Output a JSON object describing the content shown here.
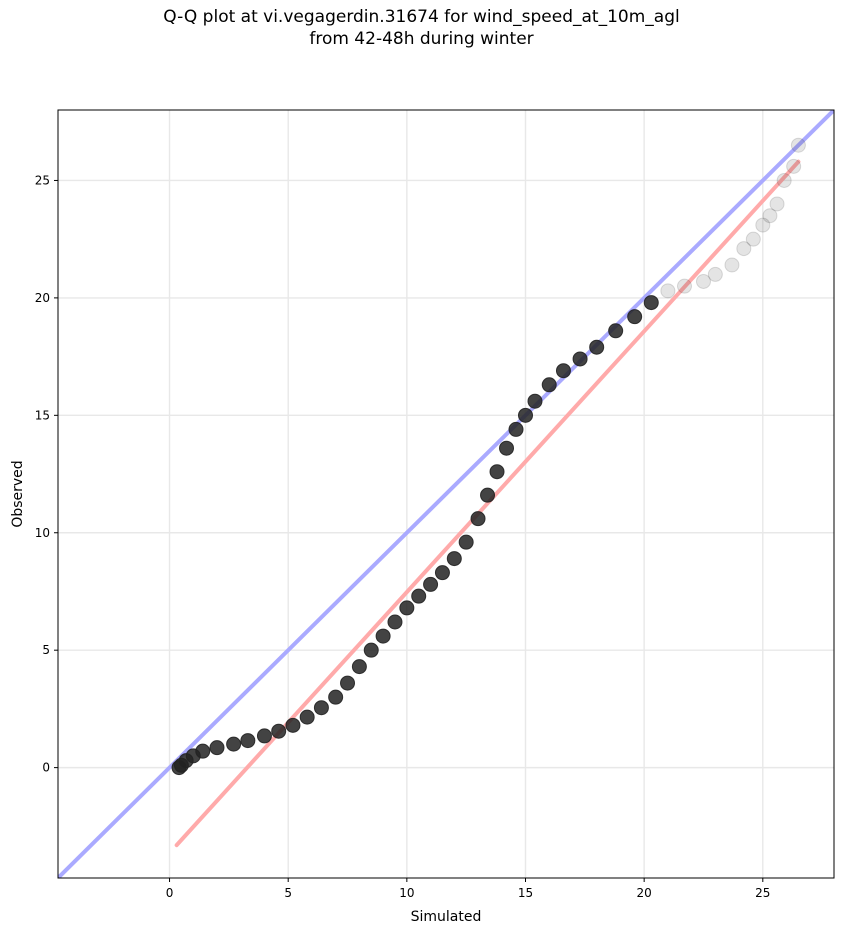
{
  "title_line1": "Q-Q plot at vi.vegagerdin.31674 for wind_speed_at_10m_agl",
  "title_line2": "from 42-48h during winter",
  "chart_data": {
    "type": "scatter",
    "title": "Q-Q plot at vi.vegagerdin.31674 for wind_speed_at_10m_agl from 42-48h during winter",
    "xlabel": "Simulated",
    "ylabel": "Observed",
    "xlim": [
      -4.7,
      28.0
    ],
    "ylim": [
      -4.7,
      28.0
    ],
    "xticks": [
      0,
      5,
      10,
      15,
      20,
      25
    ],
    "yticks": [
      0,
      5,
      10,
      15,
      20,
      25
    ],
    "grid": true,
    "colors": {
      "identity_line": "#aaaaff",
      "fit_line": "#ffaaaa",
      "points": "#222222"
    },
    "series": [
      {
        "kind": "points",
        "points": [
          [
            0.4,
            0.0
          ],
          [
            0.5,
            0.1
          ],
          [
            0.7,
            0.3
          ],
          [
            1.0,
            0.5
          ],
          [
            1.4,
            0.7
          ],
          [
            2.0,
            0.85
          ],
          [
            2.7,
            1.0
          ],
          [
            3.3,
            1.15
          ],
          [
            4.0,
            1.35
          ],
          [
            4.6,
            1.55
          ],
          [
            5.2,
            1.8
          ],
          [
            5.8,
            2.15
          ],
          [
            6.4,
            2.55
          ],
          [
            7.0,
            3.0
          ],
          [
            7.5,
            3.6
          ],
          [
            8.0,
            4.3
          ],
          [
            8.5,
            5.0
          ],
          [
            9.0,
            5.6
          ],
          [
            9.5,
            6.2
          ],
          [
            10.0,
            6.8
          ],
          [
            10.5,
            7.3
          ],
          [
            11.0,
            7.8
          ],
          [
            11.5,
            8.3
          ],
          [
            12.0,
            8.9
          ],
          [
            12.5,
            9.6
          ],
          [
            13.0,
            10.6
          ],
          [
            13.4,
            11.6
          ],
          [
            13.8,
            12.6
          ],
          [
            14.2,
            13.6
          ],
          [
            14.6,
            14.4
          ],
          [
            15.0,
            15.0
          ],
          [
            15.4,
            15.6
          ],
          [
            16.0,
            16.3
          ],
          [
            16.6,
            16.9
          ],
          [
            17.3,
            17.4
          ],
          [
            18.0,
            17.9
          ],
          [
            18.8,
            18.6
          ],
          [
            19.6,
            19.2
          ],
          [
            20.3,
            19.8
          ],
          [
            21.0,
            20.3
          ],
          [
            21.7,
            20.5
          ],
          [
            22.5,
            20.7
          ],
          [
            23.0,
            21.0
          ],
          [
            23.7,
            21.4
          ],
          [
            24.2,
            22.1
          ],
          [
            24.6,
            22.5
          ],
          [
            25.0,
            23.1
          ],
          [
            25.3,
            23.5
          ],
          [
            25.6,
            24.0
          ],
          [
            25.9,
            25.0
          ],
          [
            26.3,
            25.6
          ],
          [
            26.5,
            26.5
          ]
        ]
      },
      {
        "kind": "identity-line",
        "points": [
          [
            -4.7,
            -4.7
          ],
          [
            28.0,
            28.0
          ]
        ]
      },
      {
        "kind": "fit-line",
        "points": [
          [
            0.3,
            -3.3
          ],
          [
            26.5,
            25.8
          ]
        ]
      }
    ]
  }
}
